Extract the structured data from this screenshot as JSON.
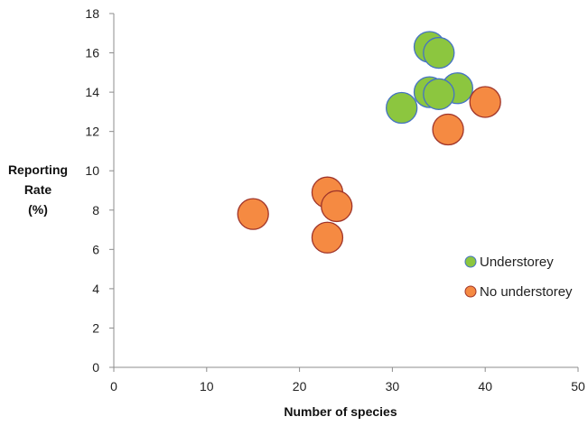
{
  "chart_data": {
    "type": "scatter",
    "xlabel": "Number of species",
    "ylabel_lines": [
      "Reporting",
      "Rate",
      "(%)"
    ],
    "xlim": [
      0,
      50
    ],
    "ylim": [
      0,
      18
    ],
    "x_ticks": [
      0,
      10,
      20,
      30,
      40,
      50
    ],
    "y_ticks": [
      0,
      2,
      4,
      6,
      8,
      10,
      12,
      14,
      16,
      18
    ],
    "grid": false,
    "legend_position": "right",
    "series": [
      {
        "name": "Understorey",
        "color": "#8CC63F",
        "edge_color": "#4472C4",
        "points": [
          {
            "x": 34,
            "y": 16.3
          },
          {
            "x": 35,
            "y": 16.0
          },
          {
            "x": 37,
            "y": 14.2
          },
          {
            "x": 34,
            "y": 14.0
          },
          {
            "x": 35,
            "y": 13.9
          },
          {
            "x": 31,
            "y": 13.2
          }
        ]
      },
      {
        "name": "No understorey",
        "color": "#F58A42",
        "edge_color": "#A0352A",
        "points": [
          {
            "x": 40,
            "y": 13.5
          },
          {
            "x": 36,
            "y": 12.1
          },
          {
            "x": 23,
            "y": 8.9
          },
          {
            "x": 24,
            "y": 8.2
          },
          {
            "x": 15,
            "y": 7.8
          },
          {
            "x": 23,
            "y": 6.6
          }
        ]
      }
    ]
  }
}
